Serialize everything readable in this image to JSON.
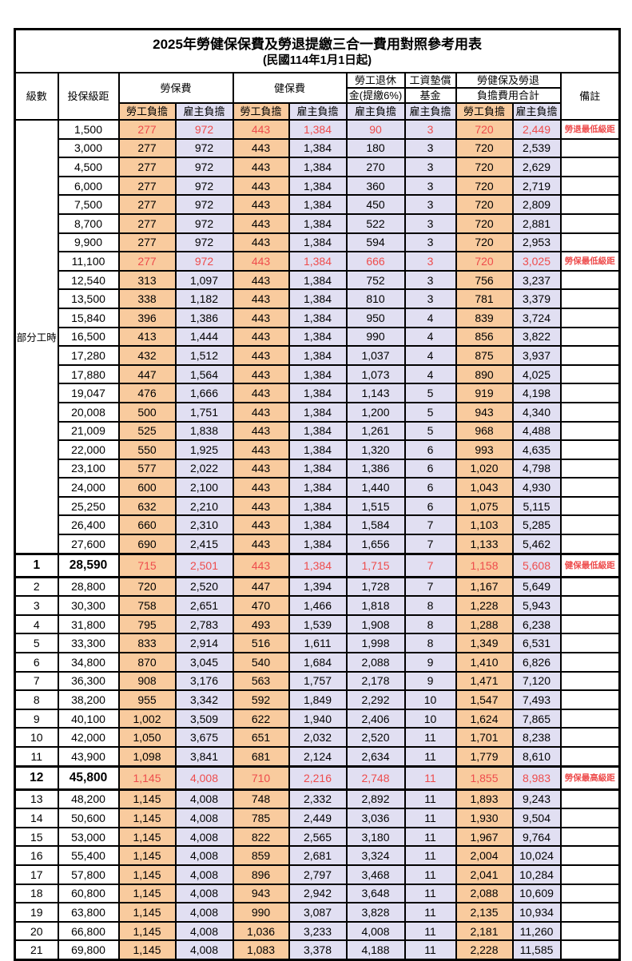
{
  "title": "2025年勞健保保費及勞退提繳三合一費用對照參考用表",
  "subtitle": "(民國114年1月1日起)",
  "colors": {
    "employee_share_bg": "#F9CB9E",
    "employer_share_bg": "#E1DFF2",
    "highlight_text": "#EE4C4C",
    "border": "#000000"
  },
  "header": {
    "level": "級數",
    "bracket": "投保級距",
    "labor_fee": "勞保費",
    "health_fee": "健保費",
    "pension_top": "勞工退休",
    "pension_bottom": "金(提繳6%)",
    "fund_top": "工資墊償",
    "fund_bottom": "基金",
    "total_top": "勞健保及勞退",
    "total_bottom": "負擔費用合計",
    "remark": "備註",
    "employee": "勞工負擔",
    "employer": "雇主負擔"
  },
  "group_label": "部分工時",
  "group_rowspan": 23,
  "rows": [
    {
      "level": "",
      "bracket": "1,500",
      "cells": [
        "277",
        "972",
        "443",
        "1,384",
        "90",
        "3",
        "720",
        "2,449"
      ],
      "note": "勞退最低級距",
      "red": true,
      "bold": false
    },
    {
      "level": "",
      "bracket": "3,000",
      "cells": [
        "277",
        "972",
        "443",
        "1,384",
        "180",
        "3",
        "720",
        "2,539"
      ],
      "note": "",
      "red": false,
      "bold": false
    },
    {
      "level": "",
      "bracket": "4,500",
      "cells": [
        "277",
        "972",
        "443",
        "1,384",
        "270",
        "3",
        "720",
        "2,629"
      ],
      "note": "",
      "red": false,
      "bold": false
    },
    {
      "level": "",
      "bracket": "6,000",
      "cells": [
        "277",
        "972",
        "443",
        "1,384",
        "360",
        "3",
        "720",
        "2,719"
      ],
      "note": "",
      "red": false,
      "bold": false
    },
    {
      "level": "",
      "bracket": "7,500",
      "cells": [
        "277",
        "972",
        "443",
        "1,384",
        "450",
        "3",
        "720",
        "2,809"
      ],
      "note": "",
      "red": false,
      "bold": false
    },
    {
      "level": "",
      "bracket": "8,700",
      "cells": [
        "277",
        "972",
        "443",
        "1,384",
        "522",
        "3",
        "720",
        "2,881"
      ],
      "note": "",
      "red": false,
      "bold": false
    },
    {
      "level": "",
      "bracket": "9,900",
      "cells": [
        "277",
        "972",
        "443",
        "1,384",
        "594",
        "3",
        "720",
        "2,953"
      ],
      "note": "",
      "red": false,
      "bold": false
    },
    {
      "level": "",
      "bracket": "11,100",
      "cells": [
        "277",
        "972",
        "443",
        "1,384",
        "666",
        "3",
        "720",
        "3,025"
      ],
      "note": "勞保最低級距",
      "red": true,
      "bold": false
    },
    {
      "level": "",
      "bracket": "12,540",
      "cells": [
        "313",
        "1,097",
        "443",
        "1,384",
        "752",
        "3",
        "756",
        "3,237"
      ],
      "note": "",
      "red": false,
      "bold": false
    },
    {
      "level": "",
      "bracket": "13,500",
      "cells": [
        "338",
        "1,182",
        "443",
        "1,384",
        "810",
        "3",
        "781",
        "3,379"
      ],
      "note": "",
      "red": false,
      "bold": false
    },
    {
      "level": "",
      "bracket": "15,840",
      "cells": [
        "396",
        "1,386",
        "443",
        "1,384",
        "950",
        "4",
        "839",
        "3,724"
      ],
      "note": "",
      "red": false,
      "bold": false
    },
    {
      "level": "",
      "bracket": "16,500",
      "cells": [
        "413",
        "1,444",
        "443",
        "1,384",
        "990",
        "4",
        "856",
        "3,822"
      ],
      "note": "",
      "red": false,
      "bold": false
    },
    {
      "level": "",
      "bracket": "17,280",
      "cells": [
        "432",
        "1,512",
        "443",
        "1,384",
        "1,037",
        "4",
        "875",
        "3,937"
      ],
      "note": "",
      "red": false,
      "bold": false
    },
    {
      "level": "",
      "bracket": "17,880",
      "cells": [
        "447",
        "1,564",
        "443",
        "1,384",
        "1,073",
        "4",
        "890",
        "4,025"
      ],
      "note": "",
      "red": false,
      "bold": false
    },
    {
      "level": "",
      "bracket": "19,047",
      "cells": [
        "476",
        "1,666",
        "443",
        "1,384",
        "1,143",
        "5",
        "919",
        "4,198"
      ],
      "note": "",
      "red": false,
      "bold": false
    },
    {
      "level": "",
      "bracket": "20,008",
      "cells": [
        "500",
        "1,751",
        "443",
        "1,384",
        "1,200",
        "5",
        "943",
        "4,340"
      ],
      "note": "",
      "red": false,
      "bold": false
    },
    {
      "level": "",
      "bracket": "21,009",
      "cells": [
        "525",
        "1,838",
        "443",
        "1,384",
        "1,261",
        "5",
        "968",
        "4,488"
      ],
      "note": "",
      "red": false,
      "bold": false
    },
    {
      "level": "",
      "bracket": "22,000",
      "cells": [
        "550",
        "1,925",
        "443",
        "1,384",
        "1,320",
        "6",
        "993",
        "4,635"
      ],
      "note": "",
      "red": false,
      "bold": false
    },
    {
      "level": "",
      "bracket": "23,100",
      "cells": [
        "577",
        "2,022",
        "443",
        "1,384",
        "1,386",
        "6",
        "1,020",
        "4,798"
      ],
      "note": "",
      "red": false,
      "bold": false
    },
    {
      "level": "",
      "bracket": "24,000",
      "cells": [
        "600",
        "2,100",
        "443",
        "1,384",
        "1,440",
        "6",
        "1,043",
        "4,930"
      ],
      "note": "",
      "red": false,
      "bold": false
    },
    {
      "level": "",
      "bracket": "25,250",
      "cells": [
        "632",
        "2,210",
        "443",
        "1,384",
        "1,515",
        "6",
        "1,075",
        "5,115"
      ],
      "note": "",
      "red": false,
      "bold": false
    },
    {
      "level": "",
      "bracket": "26,400",
      "cells": [
        "660",
        "2,310",
        "443",
        "1,384",
        "1,584",
        "7",
        "1,103",
        "5,285"
      ],
      "note": "",
      "red": false,
      "bold": false
    },
    {
      "level": "",
      "bracket": "27,600",
      "cells": [
        "690",
        "2,415",
        "443",
        "1,384",
        "1,656",
        "7",
        "1,133",
        "5,462"
      ],
      "note": "",
      "red": false,
      "bold": false
    },
    {
      "level": "1",
      "bracket": "28,590",
      "cells": [
        "715",
        "2,501",
        "443",
        "1,384",
        "1,715",
        "7",
        "1,158",
        "5,608"
      ],
      "note": "健保最低級距",
      "red": true,
      "bold": true
    },
    {
      "level": "2",
      "bracket": "28,800",
      "cells": [
        "720",
        "2,520",
        "447",
        "1,394",
        "1,728",
        "7",
        "1,167",
        "5,649"
      ],
      "note": "",
      "red": false,
      "bold": false
    },
    {
      "level": "3",
      "bracket": "30,300",
      "cells": [
        "758",
        "2,651",
        "470",
        "1,466",
        "1,818",
        "8",
        "1,228",
        "5,943"
      ],
      "note": "",
      "red": false,
      "bold": false
    },
    {
      "level": "4",
      "bracket": "31,800",
      "cells": [
        "795",
        "2,783",
        "493",
        "1,539",
        "1,908",
        "8",
        "1,288",
        "6,238"
      ],
      "note": "",
      "red": false,
      "bold": false
    },
    {
      "level": "5",
      "bracket": "33,300",
      "cells": [
        "833",
        "2,914",
        "516",
        "1,611",
        "1,998",
        "8",
        "1,349",
        "6,531"
      ],
      "note": "",
      "red": false,
      "bold": false
    },
    {
      "level": "6",
      "bracket": "34,800",
      "cells": [
        "870",
        "3,045",
        "540",
        "1,684",
        "2,088",
        "9",
        "1,410",
        "6,826"
      ],
      "note": "",
      "red": false,
      "bold": false
    },
    {
      "level": "7",
      "bracket": "36,300",
      "cells": [
        "908",
        "3,176",
        "563",
        "1,757",
        "2,178",
        "9",
        "1,471",
        "7,120"
      ],
      "note": "",
      "red": false,
      "bold": false
    },
    {
      "level": "8",
      "bracket": "38,200",
      "cells": [
        "955",
        "3,342",
        "592",
        "1,849",
        "2,292",
        "10",
        "1,547",
        "7,493"
      ],
      "note": "",
      "red": false,
      "bold": false
    },
    {
      "level": "9",
      "bracket": "40,100",
      "cells": [
        "1,002",
        "3,509",
        "622",
        "1,940",
        "2,406",
        "10",
        "1,624",
        "7,865"
      ],
      "note": "",
      "red": false,
      "bold": false
    },
    {
      "level": "10",
      "bracket": "42,000",
      "cells": [
        "1,050",
        "3,675",
        "651",
        "2,032",
        "2,520",
        "11",
        "1,701",
        "8,238"
      ],
      "note": "",
      "red": false,
      "bold": false
    },
    {
      "level": "11",
      "bracket": "43,900",
      "cells": [
        "1,098",
        "3,841",
        "681",
        "2,124",
        "2,634",
        "11",
        "1,779",
        "8,610"
      ],
      "note": "",
      "red": false,
      "bold": false
    },
    {
      "level": "12",
      "bracket": "45,800",
      "cells": [
        "1,145",
        "4,008",
        "710",
        "2,216",
        "2,748",
        "11",
        "1,855",
        "8,983"
      ],
      "note": "勞保最高級距",
      "red": true,
      "bold": true
    },
    {
      "level": "13",
      "bracket": "48,200",
      "cells": [
        "1,145",
        "4,008",
        "748",
        "2,332",
        "2,892",
        "11",
        "1,893",
        "9,243"
      ],
      "note": "",
      "red": false,
      "bold": false
    },
    {
      "level": "14",
      "bracket": "50,600",
      "cells": [
        "1,145",
        "4,008",
        "785",
        "2,449",
        "3,036",
        "11",
        "1,930",
        "9,504"
      ],
      "note": "",
      "red": false,
      "bold": false
    },
    {
      "level": "15",
      "bracket": "53,000",
      "cells": [
        "1,145",
        "4,008",
        "822",
        "2,565",
        "3,180",
        "11",
        "1,967",
        "9,764"
      ],
      "note": "",
      "red": false,
      "bold": false
    },
    {
      "level": "16",
      "bracket": "55,400",
      "cells": [
        "1,145",
        "4,008",
        "859",
        "2,681",
        "3,324",
        "11",
        "2,004",
        "10,024"
      ],
      "note": "",
      "red": false,
      "bold": false
    },
    {
      "level": "17",
      "bracket": "57,800",
      "cells": [
        "1,145",
        "4,008",
        "896",
        "2,797",
        "3,468",
        "11",
        "2,041",
        "10,284"
      ],
      "note": "",
      "red": false,
      "bold": false
    },
    {
      "level": "18",
      "bracket": "60,800",
      "cells": [
        "1,145",
        "4,008",
        "943",
        "2,942",
        "3,648",
        "11",
        "2,088",
        "10,609"
      ],
      "note": "",
      "red": false,
      "bold": false
    },
    {
      "level": "19",
      "bracket": "63,800",
      "cells": [
        "1,145",
        "4,008",
        "990",
        "3,087",
        "3,828",
        "11",
        "2,135",
        "10,934"
      ],
      "note": "",
      "red": false,
      "bold": false
    },
    {
      "level": "20",
      "bracket": "66,800",
      "cells": [
        "1,145",
        "4,008",
        "1,036",
        "3,233",
        "4,008",
        "11",
        "2,181",
        "11,260"
      ],
      "note": "",
      "red": false,
      "bold": false
    },
    {
      "level": "21",
      "bracket": "69,800",
      "cells": [
        "1,145",
        "4,008",
        "1,083",
        "3,378",
        "4,188",
        "11",
        "2,228",
        "11,585"
      ],
      "note": "",
      "red": false,
      "bold": false
    }
  ]
}
